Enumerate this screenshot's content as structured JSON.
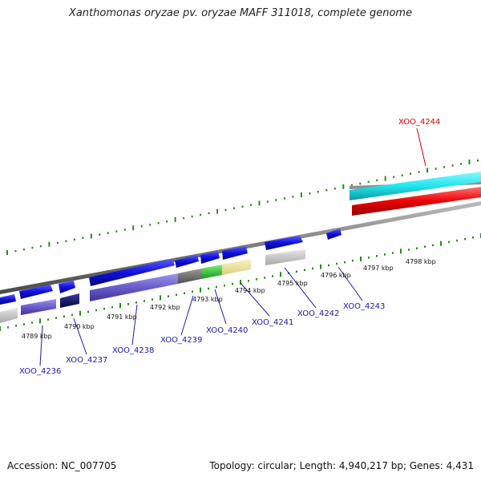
{
  "title": "Xanthomonas oryzae pv. oryzae MAFF 311018, complete genome",
  "footer": {
    "accession": "Accession: NC_007705",
    "topology": "Topology: circular; Length: 4,940,217 bp; Genes: 4,431"
  },
  "kbp_labels": [
    "4789 kbp",
    "4790 kbp",
    "4791 kbp",
    "4792 kbp",
    "4793 kbp",
    "4794 kbp",
    "4795 kbp",
    "4796 kbp",
    "4797 kbp",
    "4798 kbp"
  ],
  "gene_labels": [
    "XOO_4236",
    "XOO_4237",
    "XOO_4238",
    "XOO_4239",
    "XOO_4240",
    "XOO_4241",
    "XOO_4242",
    "XOO_4243",
    "XOO_4244"
  ],
  "colors": {
    "tick": "#2a8a1a",
    "gene_label": "#1a1ab4",
    "highlight_label": "#dd0000",
    "backbone": "#808080",
    "forward_gene": "#1010e0",
    "cyan_track": "#22e6ee",
    "red_track": "#ee0000"
  }
}
